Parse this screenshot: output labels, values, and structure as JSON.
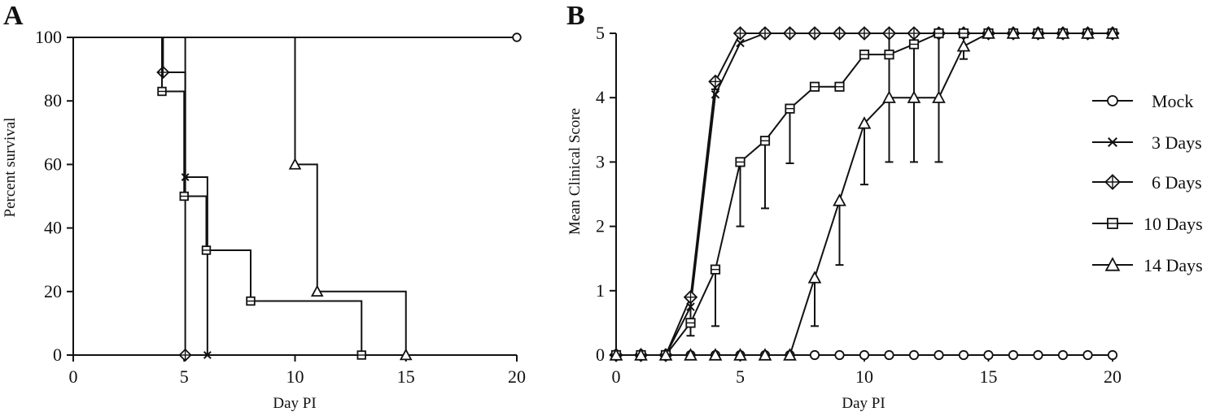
{
  "chart_data": [
    {
      "panel": "A",
      "type": "line",
      "step": true,
      "title": "",
      "xlabel": "Day PI",
      "ylabel": "Percent survival",
      "xlim": [
        0,
        20
      ],
      "ylim": [
        0,
        100
      ],
      "xticks": [
        0,
        5,
        10,
        15,
        20
      ],
      "yticks": [
        0,
        20,
        40,
        60,
        80,
        100
      ],
      "grid": false,
      "series": [
        {
          "name": "Mock",
          "marker": "circle",
          "x": [
            0,
            20
          ],
          "y": [
            100,
            100
          ],
          "markers": [
            [
              20,
              100
            ]
          ]
        },
        {
          "name": "3 Days",
          "marker": "x",
          "x": [
            0,
            5.05,
            5.05,
            6.05,
            6.05
          ],
          "y": [
            100,
            100,
            56,
            56,
            0
          ],
          "markers": [
            [
              5.05,
              56
            ],
            [
              6.05,
              0
            ]
          ]
        },
        {
          "name": "6 Days",
          "marker": "diamond",
          "x": [
            0,
            4.05,
            4.05,
            5.05,
            5.05
          ],
          "y": [
            100,
            100,
            89,
            89,
            0
          ],
          "markers": [
            [
              4.05,
              89
            ],
            [
              5.05,
              0
            ]
          ]
        },
        {
          "name": "10 Days",
          "marker": "square",
          "x": [
            0,
            4,
            4,
            5,
            5,
            6,
            6,
            8,
            8,
            13,
            13
          ],
          "y": [
            100,
            100,
            83,
            83,
            50,
            50,
            33,
            33,
            17,
            17,
            0
          ],
          "markers": [
            [
              4,
              83
            ],
            [
              5,
              50
            ],
            [
              6,
              33
            ],
            [
              8,
              17
            ],
            [
              13,
              0
            ]
          ]
        },
        {
          "name": "14 Days",
          "marker": "triangle",
          "x": [
            0,
            10,
            10,
            11,
            11,
            15,
            15
          ],
          "y": [
            100,
            100,
            60,
            60,
            20,
            20,
            0
          ],
          "markers": [
            [
              10,
              60
            ],
            [
              11,
              20
            ],
            [
              15,
              0
            ]
          ]
        }
      ]
    },
    {
      "panel": "B",
      "type": "line",
      "title": "",
      "xlabel": "Day PI",
      "ylabel": "Mean Clinical Score",
      "xlim": [
        0,
        20
      ],
      "ylim": [
        0,
        5
      ],
      "xticks": [
        0,
        5,
        10,
        15,
        20
      ],
      "yticks": [
        0,
        1,
        2,
        3,
        4,
        5
      ],
      "grid": false,
      "legend_position": "right",
      "series": [
        {
          "name": "Mock",
          "marker": "circle",
          "x": [
            0,
            1,
            2,
            3,
            4,
            5,
            6,
            7,
            8,
            9,
            10,
            11,
            12,
            13,
            14,
            15,
            16,
            17,
            18,
            19,
            20
          ],
          "y": [
            0,
            0,
            0,
            0,
            0,
            0,
            0,
            0,
            0,
            0,
            0,
            0,
            0,
            0,
            0,
            0,
            0,
            0,
            0,
            0,
            0
          ]
        },
        {
          "name": "3 Days",
          "marker": "x",
          "x": [
            0,
            1,
            2,
            3,
            4,
            5,
            6,
            7,
            8,
            9,
            10,
            11,
            12,
            13,
            14,
            15,
            16,
            17,
            18,
            19,
            20
          ],
          "y": [
            0,
            0,
            0,
            0.75,
            4.05,
            4.85,
            5,
            5,
            5,
            5,
            5,
            5,
            5,
            5,
            5,
            5,
            5,
            5,
            5,
            5,
            5
          ]
        },
        {
          "name": "6 Days",
          "marker": "diamond",
          "x": [
            0,
            1,
            2,
            3,
            4,
            5,
            6,
            7,
            8,
            9,
            10,
            11,
            12,
            13,
            14,
            15,
            16,
            17,
            18,
            19,
            20
          ],
          "y": [
            0,
            0,
            0,
            0.9,
            4.25,
            5,
            5,
            5,
            5,
            5,
            5,
            5,
            5,
            5,
            5,
            5,
            5,
            5,
            5,
            5,
            5
          ],
          "error": [
            0,
            0,
            0,
            0.6,
            0.12,
            0,
            0,
            0,
            0,
            0,
            0,
            0,
            0,
            0,
            0,
            0,
            0,
            0,
            0,
            0,
            0
          ]
        },
        {
          "name": "10 Days",
          "marker": "square",
          "x": [
            0,
            1,
            2,
            3,
            4,
            5,
            6,
            7,
            8,
            9,
            10,
            11,
            12,
            13,
            14,
            15,
            16,
            17,
            18,
            19,
            20
          ],
          "y": [
            0,
            0,
            0,
            0.5,
            1.33,
            3,
            3.33,
            3.83,
            4.17,
            4.17,
            4.67,
            4.67,
            4.83,
            5,
            5,
            5,
            5,
            5,
            5,
            5,
            5
          ],
          "error": [
            0,
            0,
            0,
            0,
            0.88,
            1,
            1.05,
            0.85,
            0,
            0,
            0,
            0,
            0,
            0,
            0,
            0,
            0,
            0,
            0,
            0,
            0
          ]
        },
        {
          "name": "14 Days",
          "marker": "triangle",
          "x": [
            0,
            1,
            2,
            3,
            4,
            5,
            6,
            7,
            8,
            9,
            10,
            11,
            12,
            13,
            14,
            15,
            16,
            17,
            18,
            19,
            20
          ],
          "y": [
            0,
            0,
            0,
            0,
            0,
            0,
            0,
            0,
            1.2,
            2.4,
            3.6,
            4,
            4,
            4,
            4.8,
            5,
            5,
            5,
            5,
            5,
            5
          ],
          "error": [
            0,
            0,
            0,
            0,
            0,
            0,
            0,
            0,
            0.75,
            1,
            0.95,
            1,
            1,
            1,
            0.2,
            0,
            0,
            0,
            0,
            0,
            0
          ]
        }
      ]
    }
  ]
}
